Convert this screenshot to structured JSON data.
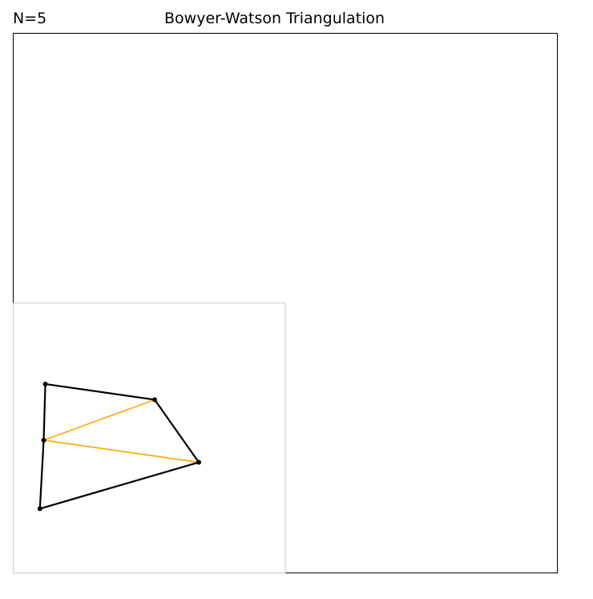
{
  "header": {
    "count_label": "N=5",
    "title": "Bowyer-Watson Triangulation"
  },
  "chart_data": {
    "type": "triangulation",
    "title": "Bowyer-Watson Triangulation",
    "count_label": "N=5",
    "xlim": [
      0,
      1
    ],
    "ylim": [
      0,
      1
    ],
    "axes_visible": false,
    "inset_box": {
      "x": [
        0,
        0.5
      ],
      "y": [
        0,
        0.5
      ],
      "color": "#cccccc"
    },
    "points": [
      {
        "x": 0.059,
        "y": 0.35
      },
      {
        "x": 0.26,
        "y": 0.321
      },
      {
        "x": 0.341,
        "y": 0.205
      },
      {
        "x": 0.056,
        "y": 0.246
      },
      {
        "x": 0.049,
        "y": 0.119
      }
    ],
    "hull_edges": [
      [
        0,
        1
      ],
      [
        1,
        2
      ],
      [
        2,
        4
      ],
      [
        4,
        3
      ],
      [
        3,
        0
      ]
    ],
    "hull_color": "#000000",
    "interior_edges": [
      [
        3,
        1
      ],
      [
        3,
        2
      ]
    ],
    "interior_color": "#ffa500",
    "point_color": "#000000"
  }
}
